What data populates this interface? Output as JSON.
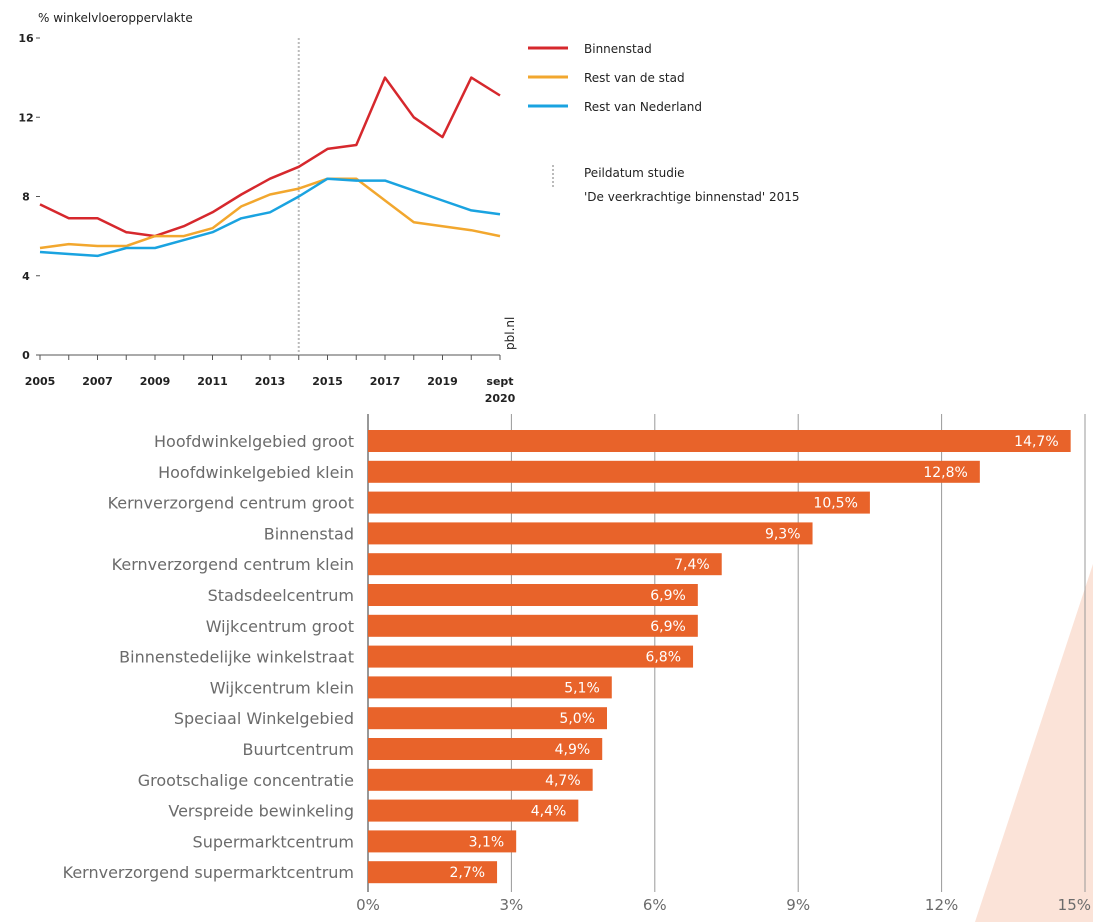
{
  "chart_data": [
    {
      "type": "line",
      "ylabel": "% winkelvloeroppervlakte",
      "ylim": [
        0,
        16
      ],
      "yticks": [
        0,
        4,
        8,
        12,
        16
      ],
      "x": [
        "2005",
        "2006",
        "2007",
        "2008",
        "2009",
        "2010",
        "2011",
        "2012",
        "2013",
        "2014",
        "2015",
        "2016",
        "2017",
        "2018",
        "2019",
        "2020",
        "sept 2020"
      ],
      "xtick_labels": [
        "2005",
        "2007",
        "2009",
        "2011",
        "2013",
        "2015",
        "2017",
        "2019",
        "sept"
      ],
      "xtick_sub": "2020",
      "series": [
        {
          "name": "Binnenstad",
          "color": "#d6282d",
          "values": [
            7.6,
            6.9,
            6.9,
            6.2,
            6.0,
            6.5,
            7.2,
            8.1,
            8.9,
            9.5,
            10.4,
            10.6,
            14.0,
            12.0,
            11.0,
            14.0,
            13.1
          ]
        },
        {
          "name": "Rest van de stad",
          "color": "#f2a72e",
          "values": [
            5.4,
            5.6,
            5.5,
            5.5,
            6.0,
            6.0,
            6.4,
            7.5,
            8.1,
            8.4,
            8.9,
            8.9,
            7.8,
            6.7,
            6.5,
            6.3,
            6.0
          ]
        },
        {
          "name": "Rest van Nederland",
          "color": "#1aa3e0",
          "values": [
            5.2,
            5.1,
            5.0,
            5.4,
            5.4,
            5.8,
            6.2,
            6.9,
            7.2,
            8.0,
            8.9,
            8.8,
            8.8,
            8.3,
            7.8,
            7.3,
            7.1
          ]
        }
      ],
      "reference_line": {
        "x": "2014",
        "label_line1": "Peildatum studie",
        "label_line2": "'De veerkrachtige binnenstad' 2015"
      },
      "source_note": "pbl.nl",
      "legend_position": "top-right",
      "grid": false
    },
    {
      "type": "bar",
      "orientation": "horizontal",
      "color": "#e8632a",
      "categories": [
        "Hoofdwinkelgebied groot",
        "Hoofdwinkelgebied klein",
        "Kernverzorgend centrum groot",
        "Binnenstad",
        "Kernverzorgend centrum klein",
        "Stadsdeelcentrum",
        "Wijkcentrum groot",
        "Binnenstedelijke winkelstraat",
        "Wijkcentrum klein",
        "Speciaal Winkelgebied",
        "Buurtcentrum",
        "Grootschalige concentratie",
        "Verspreide bewinkeling",
        "Supermarktcentrum",
        "Kernverzorgend supermarktcentrum"
      ],
      "values": [
        14.7,
        12.8,
        10.5,
        9.3,
        7.4,
        6.9,
        6.9,
        6.8,
        5.1,
        5.0,
        4.9,
        4.7,
        4.4,
        3.1,
        2.7
      ],
      "value_labels": [
        "14,7%",
        "12,8%",
        "10,5%",
        "9,3%",
        "7,4%",
        "6,9%",
        "6,9%",
        "6,8%",
        "5,1%",
        "5,0%",
        "4,9%",
        "4,7%",
        "4,4%",
        "3,1%",
        "2,7%"
      ],
      "xlim": [
        0,
        15
      ],
      "xticks": [
        0,
        3,
        6,
        9,
        12,
        15
      ],
      "xtick_labels": [
        "0%",
        "3%",
        "6%",
        "9%",
        "12%",
        "15%"
      ],
      "grid": true
    }
  ]
}
